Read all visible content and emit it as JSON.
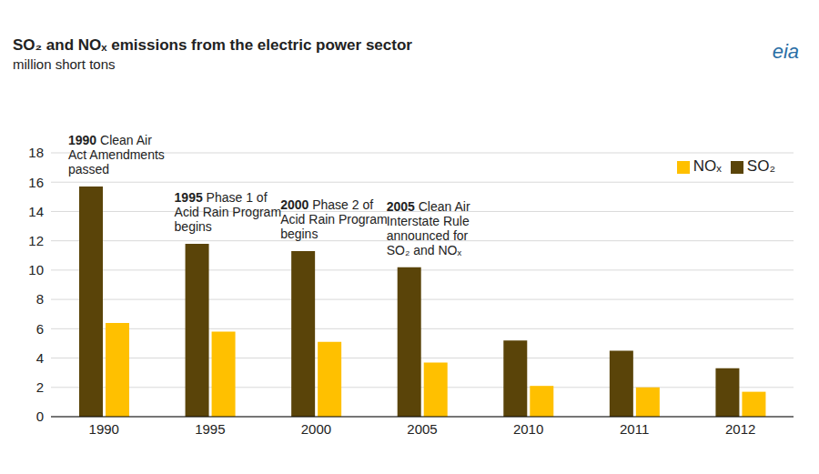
{
  "chart_data": {
    "type": "bar",
    "title": "SO₂ and NOₓ emissions from the electric power sector",
    "subtitle": "million short tons",
    "logo": "eia",
    "categories": [
      "1990",
      "1995",
      "2000",
      "2005",
      "2010",
      "2011",
      "2012"
    ],
    "series": [
      {
        "name": "SO₂",
        "color": "#5a4409",
        "values": [
          15.7,
          11.8,
          11.3,
          10.2,
          5.2,
          4.5,
          3.3
        ]
      },
      {
        "name": "NOₓ",
        "color": "#ffc000",
        "values": [
          6.4,
          5.8,
          5.1,
          3.7,
          2.1,
          2.0,
          1.7
        ]
      }
    ],
    "ylim": [
      0,
      18
    ],
    "yticks": [
      0,
      2,
      4,
      6,
      8,
      10,
      12,
      14,
      16,
      18
    ],
    "grid": true,
    "legend": "top right",
    "annotations": [
      {
        "category": "1990",
        "lines": [
          "1990 Clean Air",
          "Act Amendments",
          "passed"
        ]
      },
      {
        "category": "1995",
        "lines": [
          "1995 Phase 1 of",
          "Acid Rain Program",
          "begins"
        ]
      },
      {
        "category": "2000",
        "lines": [
          "2000 Phase 2 of",
          "Acid Rain Program",
          "begins"
        ]
      },
      {
        "category": "2005",
        "lines": [
          "2005 Clean Air",
          "Interstate Rule",
          "announced for",
          "SO₂ and NOₓ"
        ]
      }
    ]
  }
}
